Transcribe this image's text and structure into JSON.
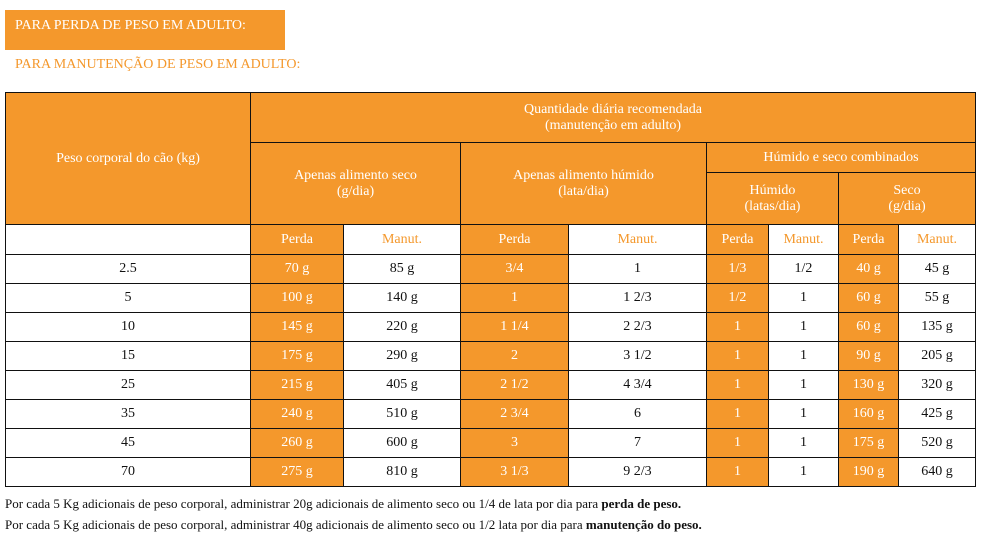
{
  "tabs": [
    "PARA PERDA DE PESO EM ADULTO:",
    "PARA MANUTENÇÃO DE PESO EM ADULTO:"
  ],
  "colors": {
    "accent": "#f4982c"
  },
  "header": {
    "weight": "Peso corporal do cão (kg)",
    "title1": "Quantidade diária recomendada",
    "title2": "(manutenção em adulto)",
    "dry1": "Apenas alimento seco",
    "dry2": "(g/dia)",
    "wet1": "Apenas alimento húmido",
    "wet2": "(lata/dia)",
    "combined": "Húmido e seco combinados",
    "cwet1": "Húmido",
    "cwet2": "(latas/dia)",
    "cdry1": "Seco",
    "cdry2": "(g/dia)",
    "perda": "Perda",
    "manut": "Manut."
  },
  "rows": [
    [
      "2.5",
      "70 g",
      "85 g",
      "3/4",
      "1",
      "1/3",
      "1/2",
      "40 g",
      "45 g"
    ],
    [
      "5",
      "100 g",
      "140 g",
      "1",
      "1 2/3",
      "1/2",
      "1",
      "60 g",
      "55 g"
    ],
    [
      "10",
      "145 g",
      "220 g",
      "1 1/4",
      "2 2/3",
      "1",
      "1",
      "60 g",
      "135 g"
    ],
    [
      "15",
      "175 g",
      "290 g",
      "2",
      "3 1/2",
      "1",
      "1",
      "90 g",
      "205 g"
    ],
    [
      "25",
      "215 g",
      "405 g",
      "2 1/2",
      "4 3/4",
      "1",
      "1",
      "130 g",
      "320 g"
    ],
    [
      "35",
      "240 g",
      "510 g",
      "2 3/4",
      "6",
      "1",
      "1",
      "160 g",
      "425 g"
    ],
    [
      "45",
      "260 g",
      "600 g",
      "3",
      "7",
      "1",
      "1",
      "175 g",
      "520 g"
    ],
    [
      "70",
      "275 g",
      "810 g",
      "3 1/3",
      "9 2/3",
      "1",
      "1",
      "190 g",
      "640 g"
    ]
  ],
  "footnotes": [
    {
      "text": "Por cada 5 Kg adicionais de peso corporal, administrar 20g adicionais de alimento seco ou 1/4 de lata por dia para ",
      "bold": "perda de peso."
    },
    {
      "text": "Por cada 5 Kg adicionais de peso corporal, administrar 40g adicionais de alimento seco ou 1/2 lata por dia para ",
      "bold": "manutenção do peso."
    }
  ]
}
